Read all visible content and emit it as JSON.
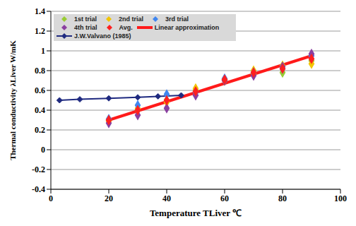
{
  "chart_data": {
    "type": "scatter",
    "x_label": "Temperature TLiver ℃",
    "y_label": "Thermal conductivity λLiver W/mK",
    "xlim": [
      0,
      100
    ],
    "xticks": [
      0,
      20,
      40,
      60,
      80,
      100
    ],
    "ylim": [
      -0.4,
      1.4
    ],
    "yticks": [
      -0.4,
      -0.2,
      0,
      0.2,
      0.4,
      0.6,
      0.8,
      1,
      1.2,
      1.4
    ],
    "grid": true,
    "legend": "upper left",
    "series": [
      {
        "name": "1st trial",
        "type": "scatter",
        "marker": "diamond",
        "color": "#99cc33",
        "x": [
          20,
          30,
          40,
          50,
          60,
          70,
          80,
          90
        ],
        "values": [
          0.3,
          0.4,
          0.5,
          0.6,
          0.7,
          0.77,
          0.78,
          0.9
        ]
      },
      {
        "name": "2nd trial",
        "type": "scatter",
        "marker": "diamond",
        "color": "#f2c400",
        "x": [
          20,
          30,
          40,
          50,
          60,
          70,
          80,
          90
        ],
        "values": [
          0.29,
          0.42,
          0.48,
          0.62,
          0.71,
          0.8,
          0.85,
          0.87
        ]
      },
      {
        "name": "3rd trial",
        "type": "scatter",
        "marker": "diamond",
        "color": "#3f86f0",
        "x": [
          20,
          30,
          40,
          50,
          60,
          70,
          80,
          90
        ],
        "values": [
          0.31,
          0.45,
          0.56,
          0.58,
          0.72,
          0.78,
          0.82,
          0.95
        ]
      },
      {
        "name": "4th trial",
        "type": "scatter",
        "marker": "diamond",
        "color": "#8a3fa0",
        "x": [
          20,
          30,
          40,
          50,
          60,
          70,
          80,
          90
        ],
        "values": [
          0.27,
          0.35,
          0.42,
          0.55,
          0.7,
          0.75,
          0.84,
          0.97
        ]
      },
      {
        "name": "Avg.",
        "type": "scatter",
        "marker": "diamond",
        "color": "#ff2020",
        "x": [
          20,
          30,
          40,
          50,
          60,
          70,
          80,
          90
        ],
        "values": [
          0.3,
          0.4,
          0.5,
          0.59,
          0.71,
          0.78,
          0.82,
          0.92
        ]
      },
      {
        "name": "Linear approximation",
        "type": "line",
        "line_style": "solid",
        "color": "#ff1a1a",
        "x": [
          20,
          90
        ],
        "values": [
          0.3,
          0.95
        ]
      },
      {
        "name": "J.W.Valvano (1985)",
        "type": "line",
        "line_style": "solid",
        "marker": "diamond",
        "color": "#1f2a80",
        "x": [
          3,
          10,
          20,
          30,
          37,
          45
        ],
        "values": [
          0.5,
          0.51,
          0.52,
          0.53,
          0.54,
          0.55
        ]
      }
    ]
  }
}
